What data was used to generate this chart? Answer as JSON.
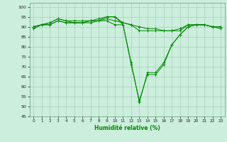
{
  "xlabel": "Humidité relative (%)",
  "bg_color": "#cceedd",
  "grid_color": "#aaccbb",
  "line_color": "#008800",
  "xlim": [
    -0.5,
    23.5
  ],
  "ylim": [
    45,
    102
  ],
  "yticks": [
    45,
    50,
    55,
    60,
    65,
    70,
    75,
    80,
    85,
    90,
    95,
    100
  ],
  "xticks": [
    0,
    1,
    2,
    3,
    4,
    5,
    6,
    7,
    8,
    9,
    10,
    11,
    12,
    13,
    14,
    15,
    16,
    17,
    18,
    19,
    20,
    21,
    22,
    23
  ],
  "series": [
    [
      90,
      91,
      91,
      93,
      92,
      92,
      92,
      92,
      93,
      93,
      91,
      91,
      71,
      53,
      66,
      66,
      71,
      81,
      86,
      90,
      91,
      91,
      90,
      90
    ],
    [
      89,
      91,
      91,
      93,
      92,
      92,
      92,
      93,
      93,
      95,
      95,
      91,
      72,
      52,
      67,
      67,
      72,
      81,
      86,
      90,
      91,
      91,
      90,
      89
    ],
    [
      90,
      91,
      92,
      94,
      93,
      92,
      92,
      93,
      93,
      94,
      93,
      92,
      91,
      88,
      88,
      88,
      88,
      88,
      88,
      91,
      91,
      91,
      90,
      90
    ],
    [
      90,
      91,
      92,
      94,
      93,
      93,
      93,
      93,
      94,
      95,
      95,
      92,
      91,
      90,
      89,
      89,
      88,
      88,
      89,
      91,
      91,
      91,
      90,
      90
    ]
  ]
}
